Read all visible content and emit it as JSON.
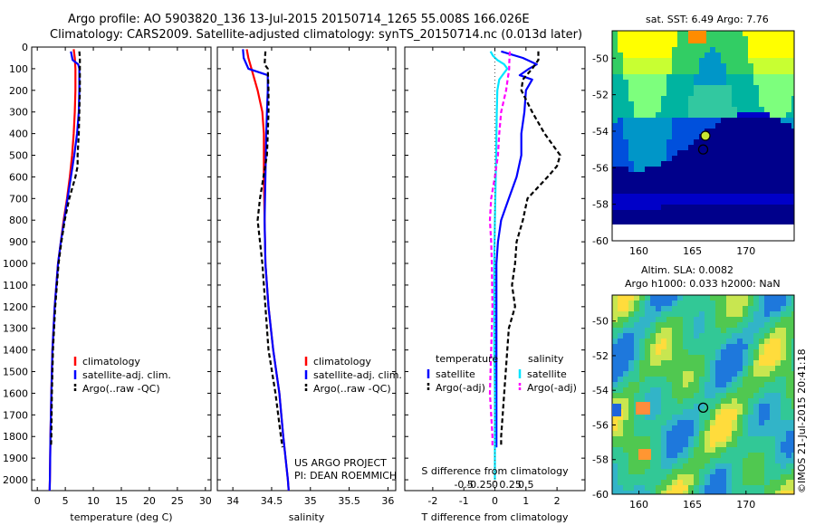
{
  "title_line1": "Argo profile: AO 5903820_136 13-Jul-2015 20150714_1265 55.008S 166.026E",
  "title_line2": "Climatology: CARS2009. Satellite-adjusted climatology: synTS_20150714.nc (0.013d later)",
  "credit": "US ARGO PROJECT",
  "pi": "PI: DEAN ROEMMICH",
  "watermark": "©IMOS 21-Jul-2015 20:41:18",
  "colors": {
    "climatology": "#ff0000",
    "satellite": "#0000ff",
    "argo": "#000000",
    "s_satellite": "#00e5ff",
    "s_argo": "#ff00ff"
  },
  "chart_data": [
    {
      "id": "temperature",
      "type": "line",
      "xlabel": "temperature (deg C)",
      "xlim": [
        -1,
        31
      ],
      "ylim": [
        2050,
        0
      ],
      "xticks": [
        0,
        5,
        10,
        15,
        20,
        25,
        30
      ],
      "yticks": [
        0,
        100,
        200,
        300,
        400,
        500,
        600,
        700,
        800,
        900,
        1000,
        1100,
        1200,
        1300,
        1400,
        1500,
        1600,
        1700,
        1800,
        1900,
        2000
      ],
      "legend": [
        "climatology",
        "satellite-adj. clim.",
        "Argo(..raw -QC)"
      ],
      "series": [
        {
          "name": "climatology",
          "color": "#ff0000",
          "dash": "",
          "depth": [
            10,
            50,
            100,
            200,
            300,
            400,
            500,
            600,
            700,
            800,
            900,
            1000,
            1200,
            1400,
            1600,
            1800,
            2000,
            2050
          ],
          "values": [
            6.5,
            6.7,
            6.8,
            6.8,
            6.7,
            6.5,
            6.2,
            5.8,
            5.3,
            4.7,
            4.2,
            3.7,
            3.1,
            2.7,
            2.5,
            2.35,
            2.25,
            2.2
          ]
        },
        {
          "name": "satellite-adj. clim.",
          "color": "#0000ff",
          "dash": "",
          "depth": [
            20,
            60,
            80,
            100,
            200,
            300,
            400,
            500,
            600,
            700,
            800,
            900,
            1000,
            1200,
            1400,
            1600,
            1800,
            2000,
            2050
          ],
          "values": [
            6.0,
            6.3,
            7.3,
            7.5,
            7.5,
            7.4,
            7.1,
            6.6,
            6.0,
            5.4,
            4.8,
            4.2,
            3.7,
            3.1,
            2.7,
            2.5,
            2.35,
            2.25,
            2.2
          ]
        },
        {
          "name": "Argo(..raw -QC)",
          "color": "#000000",
          "dash": "5,3",
          "depth": [
            20,
            50,
            100,
            200,
            300,
            400,
            500,
            550,
            600,
            700,
            800,
            900,
            1000,
            1200,
            1400,
            1600,
            1800,
            1850
          ],
          "values": [
            7.5,
            7.6,
            7.6,
            7.6,
            7.5,
            7.4,
            7.2,
            7.2,
            6.8,
            5.7,
            4.9,
            4.3,
            3.8,
            3.2,
            2.8,
            2.6,
            2.5,
            2.45
          ]
        }
      ]
    },
    {
      "id": "salinity",
      "type": "line",
      "xlabel": "salinity",
      "xlim": [
        33.8,
        36.1
      ],
      "ylim": [
        2050,
        0
      ],
      "xticks": [
        34,
        34.5,
        35,
        35.5,
        36
      ],
      "legend": [
        "climatology",
        "satellite-adj. clim.",
        "Argo(..raw -QC)"
      ],
      "series": [
        {
          "name": "climatology",
          "color": "#ff0000",
          "dash": "",
          "depth": [
            10,
            50,
            100,
            150,
            200,
            300,
            400,
            600,
            800,
            1000,
            1200,
            1400,
            1600,
            1800,
            2000,
            2050
          ],
          "values": [
            34.18,
            34.2,
            34.24,
            34.28,
            34.32,
            34.38,
            34.4,
            34.4,
            34.41,
            34.42,
            34.46,
            34.52,
            34.6,
            34.65,
            34.71,
            34.72
          ]
        },
        {
          "name": "satellite-adj. clim.",
          "color": "#0000ff",
          "dash": "",
          "depth": [
            10,
            50,
            100,
            130,
            200,
            300,
            400,
            600,
            800,
            1000,
            1200,
            1400,
            1600,
            1800,
            2000,
            2050
          ],
          "values": [
            34.13,
            34.14,
            34.2,
            34.45,
            34.45,
            34.44,
            34.43,
            34.42,
            34.41,
            34.42,
            34.46,
            34.52,
            34.6,
            34.65,
            34.71,
            34.72
          ]
        },
        {
          "name": "Argo(..raw -QC)",
          "color": "#000000",
          "dash": "5,3",
          "depth": [
            20,
            80,
            100,
            200,
            300,
            400,
            500,
            700,
            800,
            900,
            1000,
            1200,
            1400,
            1600,
            1800,
            1850
          ],
          "values": [
            34.42,
            34.41,
            34.45,
            34.46,
            34.46,
            34.45,
            34.44,
            34.35,
            34.32,
            34.35,
            34.38,
            34.42,
            34.46,
            34.55,
            34.62,
            34.64
          ]
        }
      ]
    },
    {
      "id": "difference",
      "type": "line",
      "xlabel": "T difference from climatology",
      "xlabel2": "S difference from climatology",
      "xlim": [
        -2.9,
        2.9
      ],
      "ylim": [
        2050,
        0
      ],
      "xticks": [
        -2,
        -1,
        0,
        1,
        2
      ],
      "xticks_s": [
        -0.5,
        -0.25,
        0,
        0.25,
        0.5
      ],
      "xticklabels_s": [
        "-0.5",
        "-0.25",
        "0",
        "0.25",
        "0.5"
      ],
      "legend_temperature_title": "temperature",
      "legend_salinity_title": "salinity",
      "legend_labels": [
        "satellite",
        "Argo(-adj)",
        "satellite",
        "Argo(-adj)"
      ],
      "series": [
        {
          "name": "T satellite",
          "color": "#0000ff",
          "dash": "",
          "depth": [
            20,
            50,
            80,
            100,
            130,
            150,
            200,
            300,
            400,
            500,
            600,
            700,
            800,
            900,
            1000,
            1200,
            1400,
            1600,
            1800,
            1850
          ],
          "values": [
            0.2,
            0.9,
            1.35,
            1.1,
            0.8,
            1.2,
            1.0,
            0.95,
            0.85,
            0.85,
            0.7,
            0.45,
            0.2,
            0.1,
            0.05,
            0.05,
            0.05,
            0.05,
            0.05,
            0.05
          ]
        },
        {
          "name": "T Argo(-adj)",
          "color": "#000000",
          "dash": "5,3",
          "depth": [
            20,
            60,
            100,
            150,
            200,
            300,
            400,
            500,
            550,
            600,
            700,
            800,
            900,
            1000,
            1100,
            1200,
            1300,
            1400,
            1500,
            1600,
            1700,
            1800,
            1850
          ],
          "values": [
            1.4,
            1.4,
            1.2,
            0.9,
            0.85,
            1.2,
            1.6,
            2.1,
            2.0,
            1.7,
            1.05,
            0.9,
            0.7,
            0.65,
            0.55,
            0.65,
            0.45,
            0.4,
            0.35,
            0.3,
            0.25,
            0.2,
            0.2
          ]
        },
        {
          "name": "S satellite",
          "color": "#00e5ff",
          "dash": "",
          "depth": [
            20,
            40,
            60,
            80,
            100,
            150,
            200,
            300,
            500,
            800,
            1000,
            1200,
            1400,
            1600,
            1800,
            2000
          ],
          "values": [
            -0.07,
            -0.03,
            0.04,
            0.15,
            0.2,
            0.07,
            0.04,
            0.03,
            0.02,
            0.0,
            -0.01,
            -0.01,
            -0.01,
            0.0,
            0.0,
            0.0
          ]
        },
        {
          "name": "S Argo(-adj)",
          "color": "#ff00ff",
          "dash": "5,3",
          "depth": [
            20,
            80,
            100,
            200,
            300,
            400,
            500,
            600,
            700,
            800,
            900,
            1000,
            1200,
            1400,
            1600,
            1800,
            1850
          ],
          "values": [
            0.24,
            0.23,
            0.23,
            0.18,
            0.1,
            0.07,
            0.05,
            0.0,
            -0.06,
            -0.08,
            -0.06,
            -0.05,
            -0.04,
            -0.06,
            -0.08,
            -0.04,
            -0.04
          ]
        }
      ]
    },
    {
      "id": "sst_map",
      "type": "heatmap",
      "title": "sat. SST: 6.49  Argo: 7.76",
      "xlim": [
        157.5,
        174.5
      ],
      "ylim": [
        -60,
        -48.5
      ],
      "xticks": [
        160,
        165,
        170
      ],
      "yticks": [
        -50,
        -52,
        -54,
        -56,
        -58,
        -60
      ],
      "float_position": [
        166.0,
        -55.0
      ]
    },
    {
      "id": "sla_map",
      "type": "heatmap",
      "title_line1": "Altim. SLA: 0.0082",
      "title_line2": "Argo h1000: 0.033  h2000: NaN",
      "xlim": [
        157.5,
        174.5
      ],
      "ylim": [
        -60,
        -48.5
      ],
      "xticks": [
        160,
        165,
        170
      ],
      "yticks": [
        -50,
        -52,
        -54,
        -56,
        -58,
        -60
      ],
      "float_position": [
        166.0,
        -55.0
      ]
    }
  ]
}
